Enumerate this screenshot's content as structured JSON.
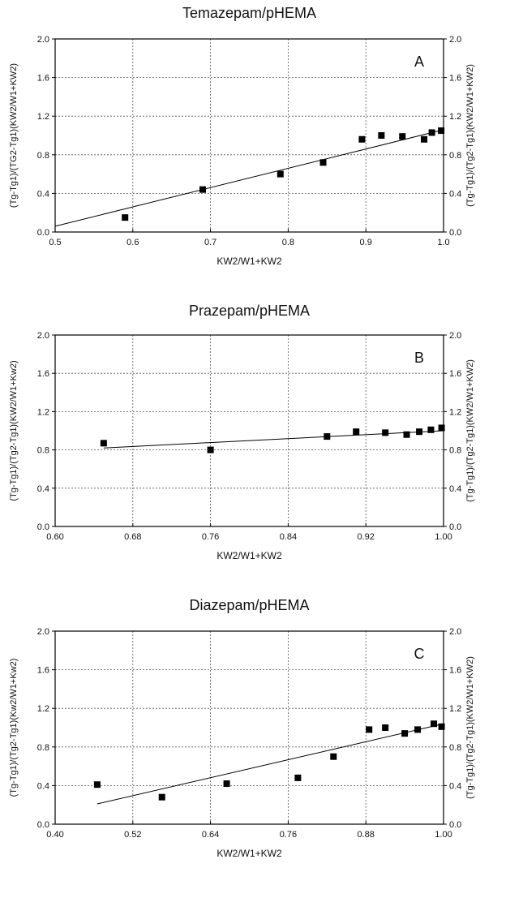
{
  "chart_data": [
    {
      "type": "scatter",
      "title": "Temazepam/pHEMA",
      "panel_label": "A",
      "xlabel": "KW2/W1+KW2",
      "ylabel_left": "(Tg-Tg1)/(TG2-Tg1)(KW2/W1+KW2)",
      "ylabel_right": "(Tg-Tg1)/(Tg2-Tg1)(KW2/W1+KW2)",
      "xlim": [
        0.5,
        1.0
      ],
      "ylim": [
        0.0,
        2.0
      ],
      "xticks": [
        "0.5",
        "0.6",
        "0.7",
        "0.8",
        "0.9",
        "1.0"
      ],
      "yticks": [
        "0.0",
        "0.4",
        "0.8",
        "1.2",
        "1.6",
        "2.0"
      ],
      "grid": true,
      "series": [
        {
          "points": [
            {
              "x": 0.59,
              "y": 0.15
            },
            {
              "x": 0.69,
              "y": 0.44
            },
            {
              "x": 0.79,
              "y": 0.6
            },
            {
              "x": 0.845,
              "y": 0.72
            },
            {
              "x": 0.895,
              "y": 0.96
            },
            {
              "x": 0.92,
              "y": 1.0
            },
            {
              "x": 0.947,
              "y": 0.99
            },
            {
              "x": 0.975,
              "y": 0.96
            },
            {
              "x": 0.985,
              "y": 1.03
            },
            {
              "x": 0.997,
              "y": 1.05
            }
          ]
        }
      ],
      "fit_line": [
        {
          "x": 0.5,
          "y": 0.06
        },
        {
          "x": 1.0,
          "y": 1.06
        }
      ]
    },
    {
      "type": "scatter",
      "title": "Prazepam/pHEMA",
      "panel_label": "B",
      "xlabel": "KW2/W1+KW2",
      "ylabel_left": "(Tg-Tg1)/(Tg2-Tg1)(KW2/W1+Kw2)",
      "ylabel_right": "(Tg-Tg1)/(Tg2-Tg1)(KW2/W1+KW2)",
      "xlim": [
        0.6,
        1.0
      ],
      "ylim": [
        0.0,
        2.0
      ],
      "xticks": [
        "0.60",
        "0.68",
        "0.76",
        "0.84",
        "0.92",
        "1.00"
      ],
      "yticks": [
        "0.0",
        "0.4",
        "0.8",
        "1.2",
        "1.6",
        "2.0"
      ],
      "grid": true,
      "series": [
        {
          "points": [
            {
              "x": 0.65,
              "y": 0.87
            },
            {
              "x": 0.76,
              "y": 0.8
            },
            {
              "x": 0.88,
              "y": 0.94
            },
            {
              "x": 0.91,
              "y": 0.99
            },
            {
              "x": 0.94,
              "y": 0.98
            },
            {
              "x": 0.962,
              "y": 0.96
            },
            {
              "x": 0.975,
              "y": 0.99
            },
            {
              "x": 0.987,
              "y": 1.01
            },
            {
              "x": 0.998,
              "y": 1.03
            }
          ]
        }
      ],
      "fit_line": [
        {
          "x": 0.65,
          "y": 0.82
        },
        {
          "x": 1.0,
          "y": 1.0
        }
      ]
    },
    {
      "type": "scatter",
      "title": "Diazepam/pHEMA",
      "panel_label": "C",
      "xlabel": "KW2/W1+KW2",
      "ylabel_left": "(Tg-Tg1)/(Tg2-Tg1)(Kw2/W1+Kw2)",
      "ylabel_right": "(Tg-Tg1)/(Tg2-Tg1)(KW2/W1+KW2)",
      "xlim": [
        0.4,
        1.0
      ],
      "ylim": [
        0.0,
        2.0
      ],
      "xticks": [
        "0.40",
        "0.52",
        "0.64",
        "0.76",
        "0.88",
        "1.00"
      ],
      "yticks": [
        "0.0",
        "0.4",
        "0.8",
        "1.2",
        "1.6",
        "2.0"
      ],
      "grid": true,
      "series": [
        {
          "points": [
            {
              "x": 0.465,
              "y": 0.41
            },
            {
              "x": 0.565,
              "y": 0.28
            },
            {
              "x": 0.665,
              "y": 0.42
            },
            {
              "x": 0.775,
              "y": 0.48
            },
            {
              "x": 0.83,
              "y": 0.7
            },
            {
              "x": 0.885,
              "y": 0.98
            },
            {
              "x": 0.91,
              "y": 1.0
            },
            {
              "x": 0.94,
              "y": 0.94
            },
            {
              "x": 0.96,
              "y": 0.98
            },
            {
              "x": 0.985,
              "y": 1.04
            },
            {
              "x": 0.997,
              "y": 1.01
            }
          ]
        }
      ],
      "fit_line": [
        {
          "x": 0.465,
          "y": 0.21
        },
        {
          "x": 1.0,
          "y": 1.04
        }
      ]
    }
  ]
}
